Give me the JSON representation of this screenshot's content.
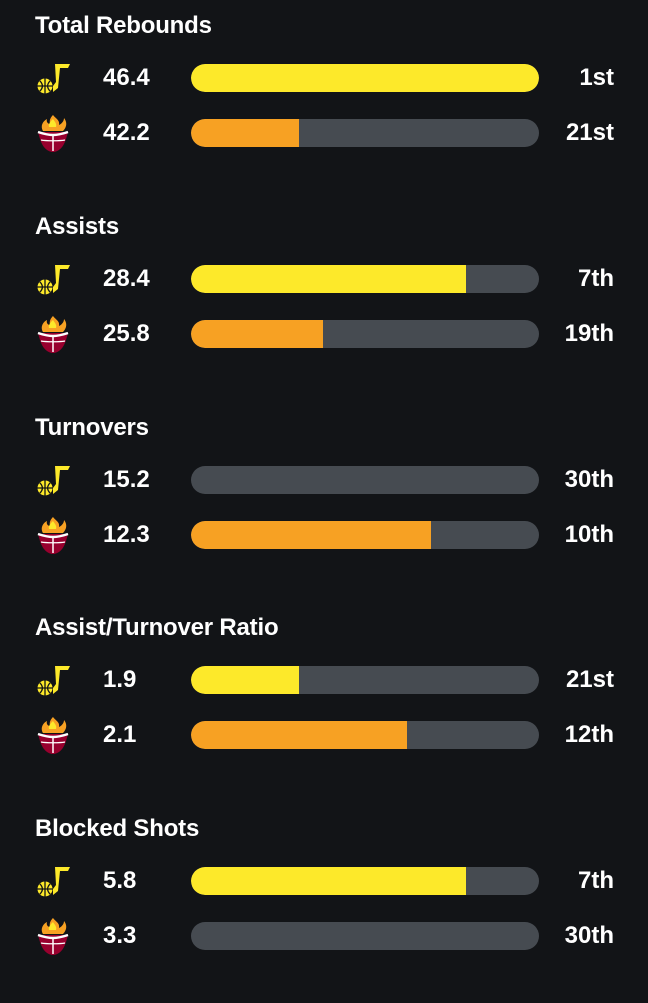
{
  "colors": {
    "background": "#121417",
    "track": "#464b51",
    "jazz_fill": "#fde92a",
    "heat_fill": "#f7a123"
  },
  "teams": {
    "jazz": {
      "icon": "utah-jazz-logo-icon"
    },
    "heat": {
      "icon": "miami-heat-logo-icon"
    }
  },
  "stats": [
    {
      "title": "Total Rebounds",
      "rows": [
        {
          "team": "jazz",
          "value": "46.4",
          "rank": "1st",
          "fill_pct": 100
        },
        {
          "team": "heat",
          "value": "42.2",
          "rank": "21st",
          "fill_pct": 31
        }
      ]
    },
    {
      "title": "Assists",
      "rows": [
        {
          "team": "jazz",
          "value": "28.4",
          "rank": "7th",
          "fill_pct": 79
        },
        {
          "team": "heat",
          "value": "25.8",
          "rank": "19th",
          "fill_pct": 38
        }
      ]
    },
    {
      "title": "Turnovers",
      "rows": [
        {
          "team": "jazz",
          "value": "15.2",
          "rank": "30th",
          "fill_pct": 0
        },
        {
          "team": "heat",
          "value": "12.3",
          "rank": "10th",
          "fill_pct": 69
        }
      ]
    },
    {
      "title": "Assist/Turnover Ratio",
      "rows": [
        {
          "team": "jazz",
          "value": "1.9",
          "rank": "21st",
          "fill_pct": 31
        },
        {
          "team": "heat",
          "value": "2.1",
          "rank": "12th",
          "fill_pct": 62
        }
      ]
    },
    {
      "title": "Blocked Shots",
      "rows": [
        {
          "team": "jazz",
          "value": "5.8",
          "rank": "7th",
          "fill_pct": 79
        },
        {
          "team": "heat",
          "value": "3.3",
          "rank": "30th",
          "fill_pct": 0
        }
      ]
    }
  ]
}
